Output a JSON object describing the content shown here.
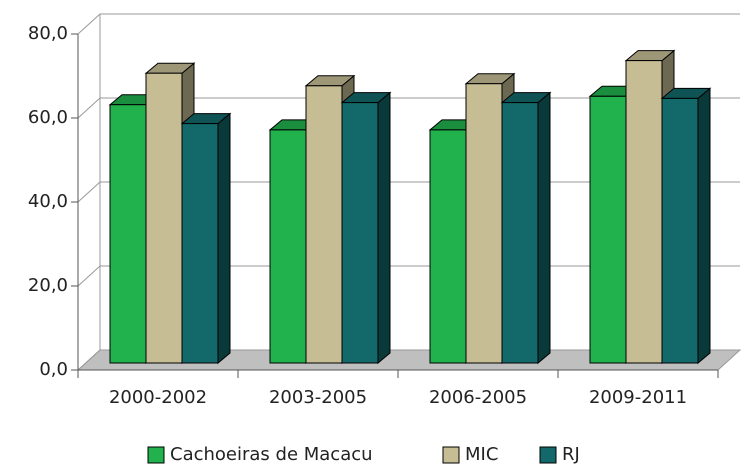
{
  "chart_data": {
    "type": "bar3d",
    "categories": [
      "2000-2002",
      "2003-2005",
      "2006-2005",
      "2009-2011"
    ],
    "series": [
      {
        "name": "Cachoeiras de Macacu",
        "color": "#21b24d",
        "values": [
          61.5,
          55.5,
          55.5,
          63.5
        ]
      },
      {
        "name": "MIC",
        "color": "#c6bd95",
        "values": [
          69,
          66,
          66.5,
          72
        ]
      },
      {
        "name": "RJ",
        "color": "#13686a",
        "values": [
          57,
          62,
          62,
          63
        ]
      }
    ],
    "ylim": [
      0,
      80
    ],
    "yticks": [
      {
        "value": 0,
        "label": "0,0"
      },
      {
        "value": 20,
        "label": "20,0"
      },
      {
        "value": 40,
        "label": "40,0"
      },
      {
        "value": 60,
        "label": "60,0"
      },
      {
        "value": 80,
        "label": "80,0"
      }
    ],
    "grid": true,
    "legend": "bottom"
  }
}
